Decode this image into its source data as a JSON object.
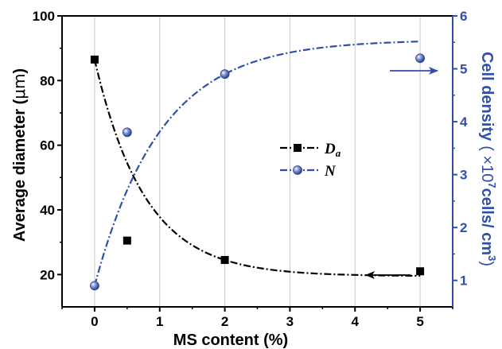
{
  "chart_data": {
    "type": "scatter",
    "xlabel": "MS content (%)",
    "x_ticks": [
      0,
      1,
      2,
      3,
      4,
      5
    ],
    "xlim": [
      -0.5,
      5.5
    ],
    "grid": "vertical",
    "y_left": {
      "label_main": "Average diameter (",
      "label_unit": "μm",
      "label_close": ")",
      "ylim": [
        10,
        100
      ],
      "ticks": [
        20,
        40,
        60,
        80,
        100
      ],
      "color": "#000000"
    },
    "y_right": {
      "label_main": "Cell density",
      "label_paren_open": "( ×10",
      "label_exp": "7",
      "label_mid": "cells/ cm",
      "label_exp2": "3",
      "label_close": ")",
      "ylim": [
        0.5,
        6
      ],
      "ticks": [
        1,
        2,
        3,
        4,
        5,
        6
      ],
      "color": "#2f4fa8"
    },
    "series": [
      {
        "name": "D",
        "name_sub": "a",
        "axis": "left",
        "marker": "square",
        "line": "dash-dot",
        "color": "#000000",
        "x": [
          0,
          0.5,
          2,
          5
        ],
        "y": [
          86.5,
          30.5,
          24.5,
          21
        ]
      },
      {
        "name": "N",
        "axis": "right",
        "marker": "circle",
        "line": "dash-dot",
        "color": "#2f4fa8",
        "x": [
          0,
          0.5,
          2,
          5
        ],
        "y": [
          0.9,
          3.8,
          4.9,
          5.2
        ]
      }
    ],
    "legend_position": "center-right",
    "annotations": [
      {
        "type": "arrow",
        "direction": "right",
        "points_to_axis": "right",
        "color": "#2f4fa8"
      },
      {
        "type": "arrow",
        "direction": "left",
        "points_to_axis": "left",
        "color": "#000000"
      }
    ]
  }
}
